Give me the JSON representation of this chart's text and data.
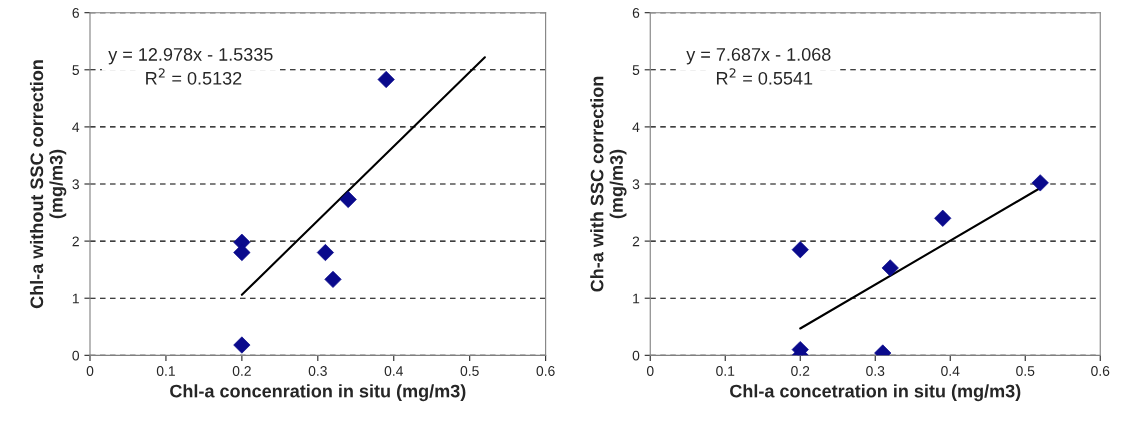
{
  "chart_data": [
    {
      "type": "scatter",
      "xlabel": "Chl-a concenration in situ (mg/m3)",
      "ylabel": "Chl-a without SSC correction\n(mg/m3)",
      "xlim": [
        0,
        0.6
      ],
      "ylim": [
        0,
        6
      ],
      "xticks": [
        0,
        0.1,
        0.2,
        0.3,
        0.4,
        0.5,
        0.6
      ],
      "yticks": [
        0,
        1,
        2,
        3,
        4,
        5,
        6
      ],
      "grid": "y",
      "legend": false,
      "annotations": [
        "y = 12.978x - 1.5335",
        "R$^{2}$ = 0.5132"
      ],
      "series": [
        {
          "marker": "diamond",
          "color": "#0a0a8c",
          "x": [
            0.2,
            0.2,
            0.2,
            0.31,
            0.32,
            0.34,
            0.39
          ],
          "values": [
            1.98,
            1.8,
            0.18,
            1.8,
            1.33,
            2.73,
            4.83
          ]
        },
        {
          "type": "line",
          "marker": "none",
          "color": "#000000",
          "x": [
            0.2,
            0.52
          ],
          "values": [
            1.06,
            5.22
          ]
        }
      ]
    },
    {
      "type": "scatter",
      "xlabel": "Chl-a concetration in situ (mg/m3)",
      "ylabel": "Ch-a with SSC correction\n(mg/m3)",
      "xlim": [
        0,
        0.6
      ],
      "ylim": [
        0,
        6
      ],
      "xticks": [
        0,
        0.1,
        0.2,
        0.3,
        0.4,
        0.5,
        0.6
      ],
      "yticks": [
        0,
        1,
        2,
        3,
        4,
        5,
        6
      ],
      "grid": "y",
      "legend": false,
      "annotations": [
        "y = 7.687x - 1.068",
        "R$^{2}$ = 0.5541"
      ],
      "series": [
        {
          "marker": "diamond",
          "color": "#0a0a8c",
          "x": [
            0.2,
            0.2,
            0.2,
            0.31,
            0.32,
            0.39,
            0.52
          ],
          "values": [
            1.85,
            0.1,
            0.0,
            0.04,
            1.53,
            2.4,
            3.02
          ]
        },
        {
          "type": "line",
          "marker": "none",
          "color": "#000000",
          "x": [
            0.2,
            0.52
          ],
          "values": [
            0.47,
            2.93
          ]
        }
      ]
    }
  ]
}
